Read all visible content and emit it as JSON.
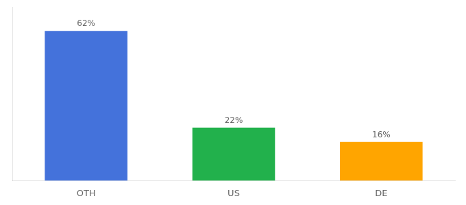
{
  "chart_data": {
    "type": "bar",
    "categories": [
      "OTH",
      "US",
      "DE"
    ],
    "values": [
      62,
      22,
      16
    ],
    "value_labels": [
      "62%",
      "22%",
      "16%"
    ],
    "colors": [
      "#4472db",
      "#22b14c",
      "#ffa500"
    ],
    "ylim": [
      0,
      72
    ],
    "grid": false,
    "data_labels": true,
    "tick_labels": "x"
  }
}
